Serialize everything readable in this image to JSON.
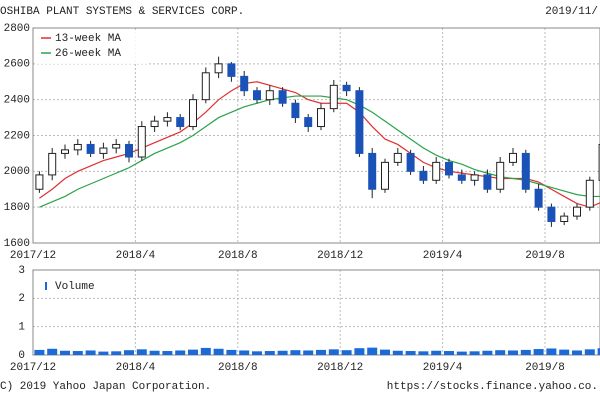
{
  "chart_data": {
    "type": "candlestick",
    "title": "OSHIBA PLANT SYSTEMS & SERVICES CORP.",
    "date": "2019/11/",
    "copyright": "C) 2019 Yahoo Japan Corporation.",
    "source": "https://stocks.finance.yahoo.co.",
    "categories": [
      "2017/12",
      null,
      null,
      null,
      null,
      null,
      null,
      null,
      "2018/4",
      null,
      null,
      null,
      null,
      null,
      null,
      null,
      "2018/8",
      null,
      null,
      null,
      null,
      null,
      null,
      null,
      "2018/12",
      null,
      null,
      null,
      null,
      null,
      null,
      null,
      "2019/4",
      null,
      null,
      null,
      null,
      null,
      null,
      null,
      "2019/8",
      null,
      null,
      null,
      null
    ],
    "open": [
      1900,
      1980,
      2100,
      2120,
      2150,
      2100,
      2130,
      2150,
      2080,
      2250,
      2280,
      2300,
      2250,
      2400,
      2550,
      2600,
      2530,
      2450,
      2400,
      2450,
      2380,
      2300,
      2250,
      2350,
      2480,
      2450,
      2100,
      1900,
      2050,
      2100,
      2000,
      1950,
      2050,
      1980,
      1950,
      1980,
      1900,
      2050,
      2100,
      1900,
      1800,
      1720,
      1750,
      1800,
      1950
    ],
    "high": [
      2000,
      2130,
      2150,
      2180,
      2170,
      2160,
      2180,
      2170,
      2280,
      2310,
      2330,
      2320,
      2430,
      2580,
      2640,
      2610,
      2560,
      2470,
      2480,
      2470,
      2400,
      2320,
      2380,
      2510,
      2500,
      2470,
      2130,
      2070,
      2130,
      2120,
      2030,
      2080,
      2070,
      2010,
      2000,
      2010,
      2080,
      2130,
      2120,
      1930,
      1820,
      1770,
      1820,
      1970,
      2180
    ],
    "low": [
      1880,
      1950,
      2070,
      2090,
      2080,
      2070,
      2100,
      2050,
      2060,
      2220,
      2250,
      2230,
      2230,
      2380,
      2520,
      2500,
      2420,
      2380,
      2370,
      2360,
      2270,
      2220,
      2230,
      2330,
      2420,
      2080,
      1850,
      1880,
      2030,
      1980,
      1930,
      1930,
      1960,
      1930,
      1920,
      1880,
      1880,
      2030,
      1880,
      1780,
      1690,
      1700,
      1730,
      1780,
      1930
    ],
    "close": [
      1980,
      2100,
      2120,
      2150,
      2100,
      2130,
      2150,
      2080,
      2250,
      2280,
      2300,
      2250,
      2400,
      2550,
      2600,
      2530,
      2450,
      2400,
      2450,
      2380,
      2300,
      2250,
      2350,
      2480,
      2450,
      2100,
      1900,
      2050,
      2100,
      2000,
      1950,
      2050,
      1980,
      1950,
      1980,
      1900,
      2050,
      2100,
      1900,
      1800,
      1720,
      1750,
      1800,
      1950,
      2150
    ],
    "up_color": "#ffffff",
    "down_color": "#1a52b8",
    "series": [
      {
        "name": "13-week MA",
        "color": "#e03030",
        "values": [
          1850,
          1900,
          1960,
          2000,
          2030,
          2060,
          2080,
          2100,
          2130,
          2160,
          2190,
          2220,
          2270,
          2330,
          2400,
          2450,
          2490,
          2500,
          2480,
          2460,
          2440,
          2400,
          2380,
          2380,
          2380,
          2330,
          2250,
          2180,
          2150,
          2100,
          2050,
          2020,
          2000,
          1990,
          1980,
          1970,
          1960,
          1960,
          1960,
          1940,
          1900,
          1860,
          1820,
          1800,
          1830
        ]
      },
      {
        "name": "26-week MA",
        "color": "#2aa24a",
        "values": [
          1800,
          1830,
          1860,
          1900,
          1930,
          1960,
          1990,
          2020,
          2060,
          2100,
          2130,
          2160,
          2200,
          2250,
          2300,
          2330,
          2360,
          2380,
          2400,
          2410,
          2420,
          2420,
          2420,
          2410,
          2400,
          2370,
          2330,
          2280,
          2230,
          2180,
          2130,
          2090,
          2060,
          2040,
          2010,
          1990,
          1970,
          1960,
          1950,
          1930,
          1910,
          1890,
          1870,
          1860,
          1860
        ]
      }
    ],
    "ylim": [
      1600,
      2800
    ],
    "yticks": [
      1600,
      1800,
      2000,
      2200,
      2400,
      2600,
      2800
    ],
    "grid": true,
    "volume": {
      "name": "Volume",
      "color": "#1a6ad8",
      "values": [
        0.18,
        0.22,
        0.15,
        0.14,
        0.16,
        0.12,
        0.13,
        0.17,
        0.2,
        0.15,
        0.14,
        0.16,
        0.19,
        0.25,
        0.22,
        0.18,
        0.16,
        0.13,
        0.14,
        0.15,
        0.17,
        0.16,
        0.18,
        0.2,
        0.17,
        0.24,
        0.26,
        0.19,
        0.15,
        0.14,
        0.13,
        0.15,
        0.14,
        0.12,
        0.13,
        0.15,
        0.17,
        0.16,
        0.18,
        0.21,
        0.23,
        0.19,
        0.16,
        0.2,
        0.24
      ],
      "ylim": [
        0,
        3
      ],
      "yticks": [
        0,
        1,
        2,
        3
      ]
    }
  }
}
